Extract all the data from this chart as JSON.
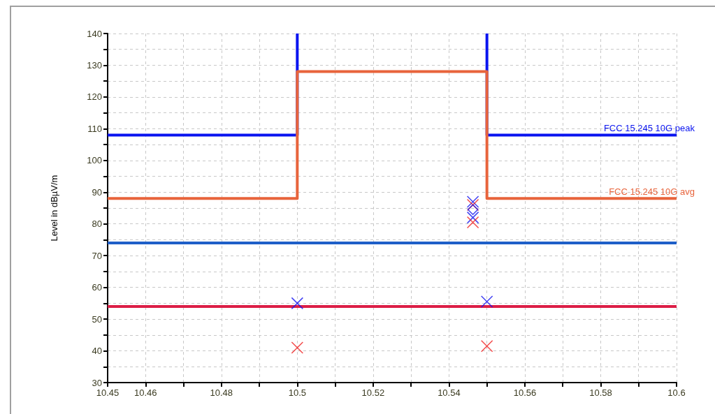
{
  "chart_data": {
    "type": "scatter",
    "ylabel": "Level in dBµV/m",
    "xlim": [
      10.45,
      10.6
    ],
    "xticks": [
      10.45,
      10.46,
      {
        "value": 10.47,
        "label": null
      },
      10.48,
      {
        "value": 10.49,
        "label": null
      },
      10.5,
      {
        "value": 10.51,
        "label": null
      },
      10.52,
      {
        "value": 10.53,
        "label": null
      },
      10.54,
      {
        "value": 10.55,
        "label": null
      },
      10.56,
      {
        "value": 10.57,
        "label": null
      },
      10.58,
      {
        "value": 10.59,
        "label": null
      },
      10.6
    ],
    "ylim": [
      30,
      140
    ],
    "yticks": [
      30,
      {
        "value": 35,
        "label": null
      },
      40,
      {
        "value": 45,
        "label": null
      },
      50,
      {
        "value": 55,
        "label": null
      },
      60,
      {
        "value": 65,
        "label": null
      },
      70,
      {
        "value": 75,
        "label": null
      },
      80,
      {
        "value": 85,
        "label": null
      },
      90,
      {
        "value": 95,
        "label": null
      },
      100,
      {
        "value": 105,
        "label": null
      },
      110,
      {
        "value": 115,
        "label": null
      },
      120,
      {
        "value": 125,
        "label": null
      },
      130,
      {
        "value": 135,
        "label": null
      },
      140
    ],
    "grid": true,
    "legend": false,
    "series": [
      {
        "type": "line",
        "color": "#0a14f0",
        "marker": "none",
        "x": [
          10.45,
          10.5,
          10.5
        ],
        "values": [
          108,
          108,
          140
        ]
      },
      {
        "type": "line",
        "name": "FCC 15.245 10G peak",
        "color": "#0a14f0",
        "marker": "none",
        "x": [
          10.55,
          10.55,
          10.6
        ],
        "values": [
          140,
          108,
          108
        ]
      },
      {
        "type": "line",
        "name": "FCC 15.245 10G avg",
        "color": "#e8643c",
        "marker": "none",
        "x": [
          10.45,
          10.5,
          10.5,
          10.55,
          10.55,
          10.6
        ],
        "values": [
          88,
          88,
          128,
          128,
          88,
          88
        ]
      },
      {
        "type": "line",
        "color": "#1e5fc8",
        "marker": "none",
        "x": [
          10.45,
          10.6
        ],
        "values": [
          74,
          74
        ]
      },
      {
        "type": "line",
        "color": "#dc1e46",
        "marker": "none",
        "x": [
          10.45,
          10.6
        ],
        "values": [
          54,
          54
        ]
      },
      {
        "color": "#1414f0",
        "marker": "cross",
        "x": [
          10.5,
          10.55,
          10.5463,
          10.5463
        ],
        "values": [
          55,
          55.5,
          87,
          82
        ]
      },
      {
        "color": "#f01e1e",
        "marker": "cross",
        "x": [
          10.5,
          10.55,
          10.5463,
          10.5463
        ],
        "values": [
          41,
          41.5,
          86,
          80.5
        ]
      },
      {
        "color": "#1414f0",
        "marker": "diamond",
        "x": [
          10.5463
        ],
        "values": [
          84.5
        ]
      }
    ]
  }
}
